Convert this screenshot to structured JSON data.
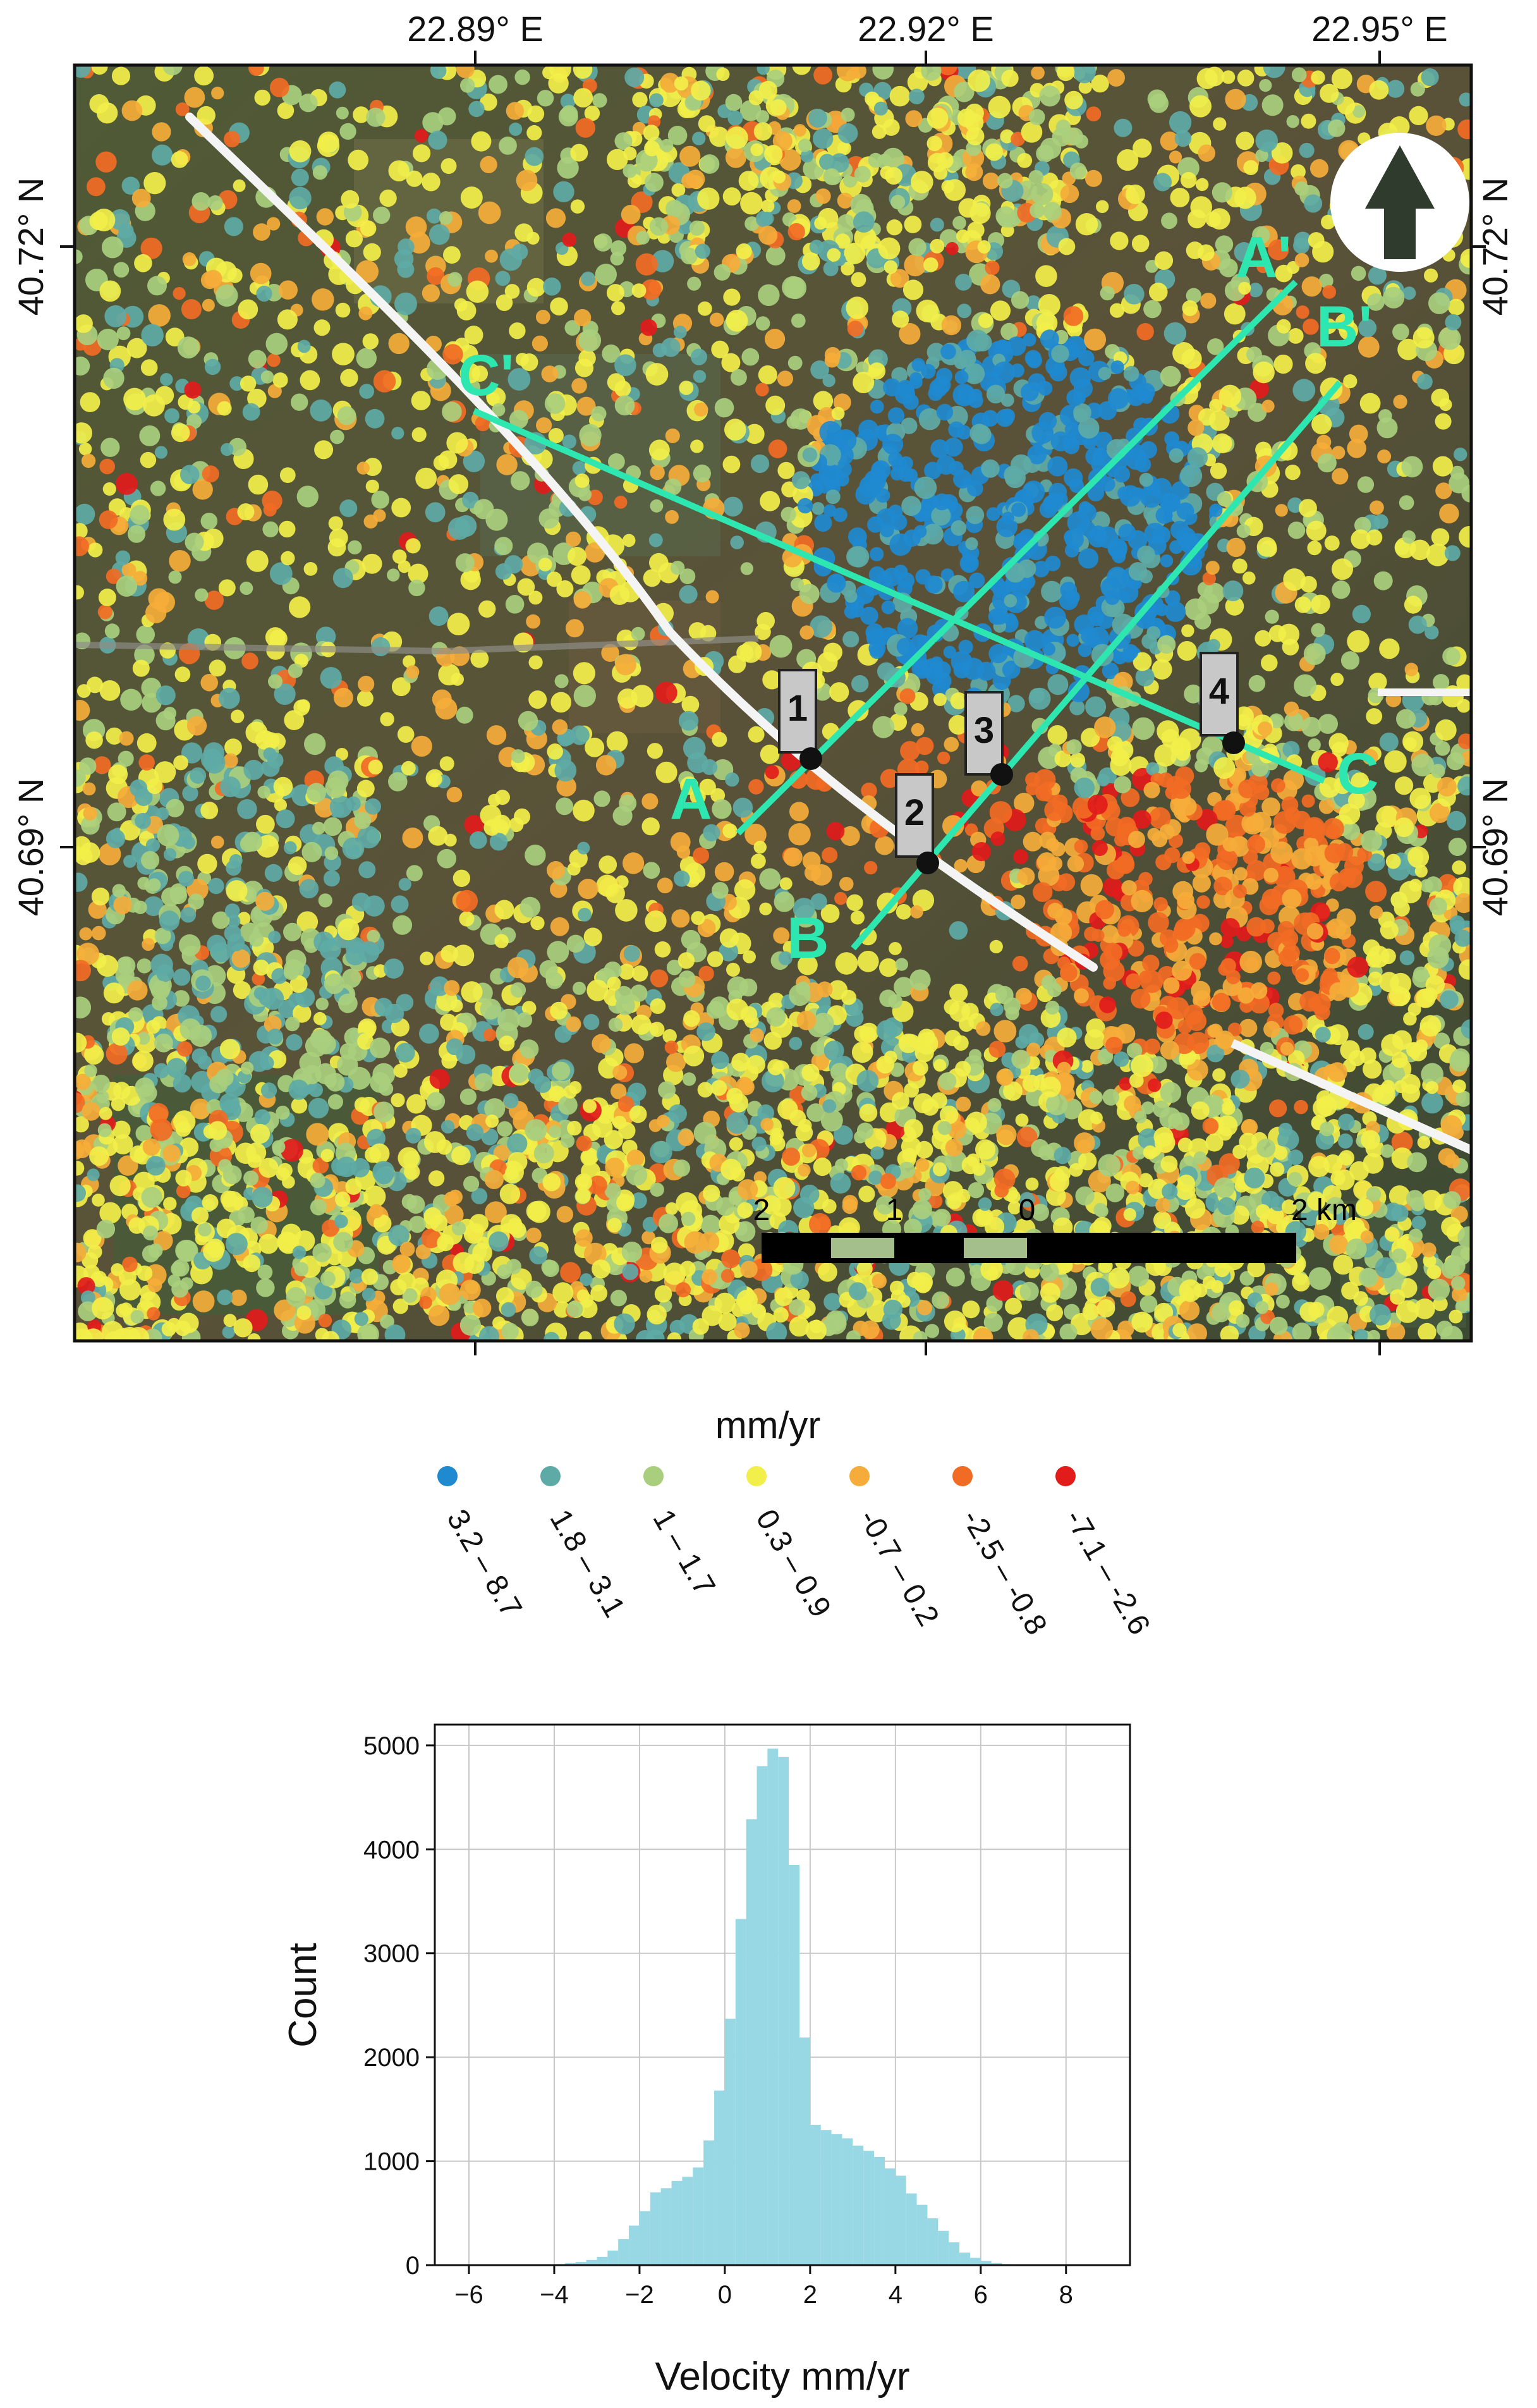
{
  "map": {
    "lon_labels": [
      "22.89° E",
      "22.92° E",
      "22.95° E"
    ],
    "lon_values": [
      22.89,
      22.92,
      22.95
    ],
    "lat_labels": [
      "40.72° N",
      "40.69° N"
    ],
    "lat_values": [
      40.72,
      40.69
    ],
    "profile_labels": [
      "A",
      "A'",
      "B",
      "B'",
      "C",
      "C'"
    ],
    "point_labels": [
      "1",
      "2",
      "3",
      "4"
    ],
    "scalebar": {
      "labels": [
        "2",
        "1",
        "0",
        "2 km"
      ]
    },
    "north_arrow": "north-arrow-icon",
    "colors": {
      "profile_line": "#2ee6b0",
      "fault_line": "#f4f4f4",
      "satellite_dark": "#3e4a2e"
    }
  },
  "legend": {
    "title": "mm/yr",
    "classes": [
      {
        "label": "3.2 – 8.7",
        "color": "#1f8ad0"
      },
      {
        "label": "1.8 – 3.1",
        "color": "#5eaaa6"
      },
      {
        "label": "1 – 1.7",
        "color": "#a9cf7e"
      },
      {
        "label": "0.3 – 0.9",
        "color": "#f2ef4a"
      },
      {
        "label": "-0.7 – 0.2",
        "color": "#f5ac3a"
      },
      {
        "label": "-2.5 – -0.8",
        "color": "#f26b24"
      },
      {
        "label": "-7.1 – -2.6",
        "color": "#e21b1b"
      }
    ]
  },
  "chart_data": {
    "type": "bar",
    "xlabel": "Velocity mm/yr",
    "ylabel": "Count",
    "xlim": [
      -6.8,
      9.5
    ],
    "ylim": [
      0,
      5200
    ],
    "xticks": [
      -6,
      -4,
      -2,
      0,
      2,
      4,
      6,
      8
    ],
    "yticks": [
      0,
      1000,
      2000,
      3000,
      4000,
      5000
    ],
    "grid": true,
    "bar_color": "#97d8e4",
    "bin_width": 0.25,
    "bins_left_edges": [
      -4,
      -3.75,
      -3.5,
      -3.25,
      -3,
      -2.75,
      -2.5,
      -2.25,
      -2,
      -1.75,
      -1.5,
      -1.25,
      -1,
      -0.75,
      -0.5,
      -0.25,
      0,
      0.25,
      0.5,
      0.75,
      1,
      1.25,
      1.5,
      1.75,
      2,
      2.25,
      2.5,
      2.75,
      3,
      3.25,
      3.5,
      3.75,
      4,
      4.25,
      4.5,
      4.75,
      5,
      5.25,
      5.5,
      5.75,
      6,
      6.25,
      6.5
    ],
    "values": [
      10,
      20,
      30,
      50,
      80,
      140,
      250,
      380,
      520,
      700,
      740,
      810,
      850,
      940,
      1200,
      1680,
      2370,
      3330,
      4290,
      4800,
      4970,
      4890,
      3850,
      2190,
      1350,
      1300,
      1260,
      1220,
      1150,
      1100,
      1040,
      930,
      860,
      690,
      580,
      450,
      330,
      220,
      120,
      70,
      40,
      20,
      10
    ]
  }
}
